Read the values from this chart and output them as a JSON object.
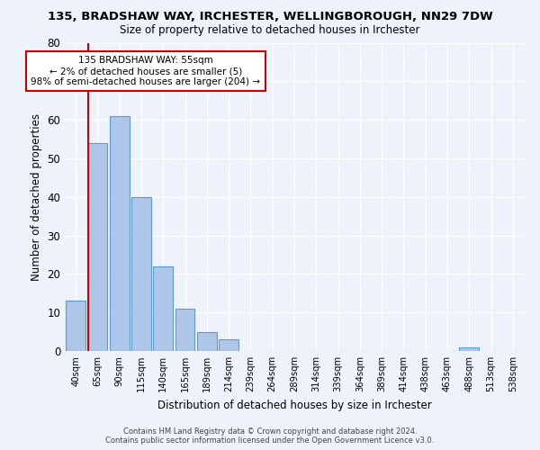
{
  "title": "135, BRADSHAW WAY, IRCHESTER, WELLINGBOROUGH, NN29 7DW",
  "subtitle": "Size of property relative to detached houses in Irchester",
  "xlabel": "Distribution of detached houses by size in Irchester",
  "ylabel": "Number of detached properties",
  "bar_labels": [
    "40sqm",
    "65sqm",
    "90sqm",
    "115sqm",
    "140sqm",
    "165sqm",
    "189sqm",
    "214sqm",
    "239sqm",
    "264sqm",
    "289sqm",
    "314sqm",
    "339sqm",
    "364sqm",
    "389sqm",
    "414sqm",
    "438sqm",
    "463sqm",
    "488sqm",
    "513sqm",
    "538sqm"
  ],
  "bar_values": [
    13,
    54,
    61,
    40,
    22,
    11,
    5,
    3,
    0,
    0,
    0,
    0,
    0,
    0,
    0,
    0,
    0,
    0,
    1,
    0,
    0
  ],
  "bar_color": "#aec6e8",
  "bar_edge_color": "#5b9bd5",
  "ylim": [
    0,
    80
  ],
  "yticks": [
    0,
    10,
    20,
    30,
    40,
    50,
    60,
    70,
    80
  ],
  "annotation_text": "135 BRADSHAW WAY: 55sqm\n← 2% of detached houses are smaller (5)\n98% of semi-detached houses are larger (204) →",
  "annotation_box_color": "#ffffff",
  "annotation_box_edge_color": "#cc0000",
  "property_line_color": "#cc0000",
  "property_line_x": 0.58,
  "footer_line1": "Contains HM Land Registry data © Crown copyright and database right 2024.",
  "footer_line2": "Contains public sector information licensed under the Open Government Licence v3.0.",
  "background_color": "#eef2fb",
  "grid_color": "#ffffff"
}
